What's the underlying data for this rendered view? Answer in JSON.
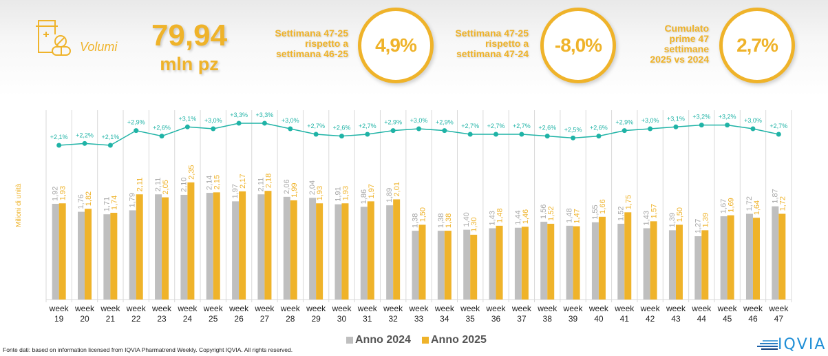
{
  "header": {
    "category_label": "Volumi",
    "category_icon": "pill-bottle-icon",
    "total_value": "79,94",
    "total_unit": "mln pz",
    "kpis": [
      {
        "label_lines": [
          "Settimana 47-25",
          "rispetto a",
          "settimana 46-25"
        ],
        "value": "4,9%"
      },
      {
        "label_lines": [
          "Settimana 47-25",
          "rispetto a",
          "settimana 47-24"
        ],
        "value": "-8,0%"
      },
      {
        "label_lines": [
          "Cumulato",
          "prime 47",
          "settimane",
          "2025 vs 2024"
        ],
        "value": "2,7%"
      }
    ]
  },
  "colors": {
    "accent": "#efb32a",
    "anno2024": "#bfbfbf",
    "anno2025": "#efb32a",
    "line": "#1fb3a6"
  },
  "chart_data": {
    "type": "bar",
    "title": "",
    "xlabel": "",
    "ylabel": "Milioni di unità",
    "categories": [
      "week 19",
      "week 20",
      "week 21",
      "week 22",
      "week 23",
      "week 24",
      "week 25",
      "week 26",
      "week 27",
      "week 28",
      "week 29",
      "week 30",
      "week 31",
      "week 32",
      "week 33",
      "week 34",
      "week 35",
      "week 36",
      "week 37",
      "week 38",
      "week 39",
      "week 40",
      "week 41",
      "week 42",
      "week 43",
      "week 44",
      "week 45",
      "week 46",
      "week 47"
    ],
    "week_numbers": [
      "19",
      "20",
      "21",
      "22",
      "23",
      "24",
      "25",
      "26",
      "27",
      "28",
      "29",
      "30",
      "31",
      "32",
      "33",
      "34",
      "35",
      "36",
      "37",
      "38",
      "39",
      "40",
      "41",
      "42",
      "43",
      "44",
      "45",
      "46",
      "47"
    ],
    "series": [
      {
        "name": "Anno 2024",
        "values": [
          1.92,
          1.76,
          1.71,
          1.79,
          2.11,
          2.1,
          2.14,
          1.97,
          2.11,
          2.06,
          2.04,
          1.91,
          1.86,
          1.89,
          1.38,
          1.38,
          1.4,
          1.43,
          1.44,
          1.56,
          1.48,
          1.55,
          1.52,
          1.43,
          1.39,
          1.27,
          1.67,
          1.72,
          1.87
        ]
      },
      {
        "name": "Anno 2025",
        "values": [
          1.93,
          1.82,
          1.74,
          2.11,
          2.05,
          2.35,
          2.15,
          2.17,
          2.18,
          1.99,
          1.93,
          1.93,
          1.97,
          2.01,
          1.5,
          1.38,
          1.3,
          1.48,
          1.46,
          1.52,
          1.47,
          1.66,
          1.75,
          1.57,
          1.5,
          1.39,
          1.69,
          1.64,
          1.72
        ]
      }
    ],
    "cumulative_growth": {
      "name": "Cumulato 2025 vs 2024",
      "type": "line",
      "values": [
        2.1,
        2.2,
        2.1,
        2.9,
        2.6,
        3.1,
        3.0,
        3.3,
        3.3,
        3.0,
        2.7,
        2.6,
        2.7,
        2.9,
        3.0,
        2.9,
        2.7,
        2.7,
        2.7,
        2.6,
        2.5,
        2.6,
        2.9,
        3.0,
        3.1,
        3.2,
        3.2,
        3.0,
        2.7
      ],
      "labels": [
        "+2,1%",
        "+2,2%",
        "+2,1%",
        "+2,9%",
        "+2,6%",
        "+3,1%",
        "+3,0%",
        "+3,3%",
        "+3,3%",
        "+3,0%",
        "+2,7%",
        "+2,6%",
        "+2,7%",
        "+2,9%",
        "+3,0%",
        "+2,9%",
        "+2,7%",
        "+2,7%",
        "+2,7%",
        "+2,6%",
        "+2,5%",
        "+2,6%",
        "+2,9%",
        "+3,0%",
        "+3,1%",
        "+3,2%",
        "+3,2%",
        "+3,0%",
        "+2,7%"
      ]
    },
    "value_labels_2024": [
      "1,92",
      "1,76",
      "1,71",
      "1,79",
      "2,11",
      "2,10",
      "2,14",
      "1,97",
      "2,11",
      "2,06",
      "2,04",
      "1,91",
      "1,86",
      "1,89",
      "1,38",
      "1,38",
      "1,40",
      "1,43",
      "1,44",
      "1,56",
      "1,48",
      "1,55",
      "1,52",
      "1,43",
      "1,39",
      "1,27",
      "1,67",
      "1,72",
      "1,87"
    ],
    "value_labels_2025": [
      "1,93",
      "1,82",
      "1,74",
      "2,11",
      "2,05",
      "2,35",
      "2,15",
      "2,17",
      "2,18",
      "1,99",
      "1,93",
      "1,93",
      "1,97",
      "2,01",
      "1,50",
      "1,38",
      "1,30",
      "1,48",
      "1,46",
      "1,52",
      "1,47",
      "1,66",
      "1,75",
      "1,57",
      "1,50",
      "1,39",
      "1,69",
      "1,64",
      "1,72"
    ],
    "week_word": "week",
    "grid": "vertical",
    "legend": "bottom-center",
    "ylim": [
      0,
      2.5
    ]
  },
  "legend": {
    "items": [
      {
        "label": "Anno 2024"
      },
      {
        "label": "Anno 2025"
      }
    ]
  },
  "footer": {
    "source": "Fonte dati: based on information licensed from IQVIA Pharmatrend Weekly. Copyright IQVIA. All rights reserved."
  },
  "logo": {
    "text": "IQVIA"
  }
}
